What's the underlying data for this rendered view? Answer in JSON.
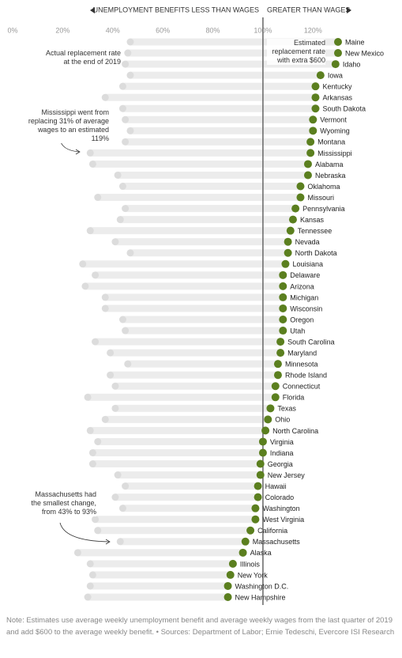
{
  "chart_data": {
    "type": "dumbbell",
    "header_left": "UNEMPLOYMENT BENEFITS LESS THAN WAGES",
    "header_right": "GREATER THAN WAGES",
    "categories": [
      "Maine",
      "New Mexico",
      "Idaho",
      "Iowa",
      "Kentucky",
      "Arkansas",
      "South Dakota",
      "Vermont",
      "Wyoming",
      "Montana",
      "Mississippi",
      "Alabama",
      "Nebraska",
      "Oklahoma",
      "Missouri",
      "Pennsylvania",
      "Kansas",
      "Tennessee",
      "Nevada",
      "North Dakota",
      "Louisiana",
      "Delaware",
      "Arizona",
      "Michigan",
      "Wisconsin",
      "Oregon",
      "Utah",
      "South Carolina",
      "Maryland",
      "Minnesota",
      "Rhode Island",
      "Connecticut",
      "Florida",
      "Texas",
      "Ohio",
      "North Carolina",
      "Virginia",
      "Indiana",
      "Georgia",
      "New Jersey",
      "Hawaii",
      "Colorado",
      "Washington",
      "West Virginia",
      "California",
      "Massachusetts",
      "Alaska",
      "Illinois",
      "New York",
      "Washington D.C.",
      "New Hampshire"
    ],
    "series": [
      {
        "name": "Actual replacement rate at the end of 2019",
        "color": "#dcdcdc",
        "values": [
          47,
          46,
          45,
          47,
          44,
          37,
          44,
          45,
          47,
          45,
          31,
          32,
          42,
          44,
          34,
          45,
          43,
          31,
          41,
          47,
          28,
          33,
          29,
          37,
          37,
          44,
          45,
          33,
          39,
          46,
          39,
          41,
          30,
          41,
          37,
          31,
          34,
          32,
          32,
          42,
          45,
          41,
          44,
          33,
          34,
          43,
          26,
          31,
          32,
          31,
          30
        ]
      },
      {
        "name": "Estimated replacement rate with extra $600",
        "color": "#5b7f1f",
        "values": [
          130,
          130,
          129,
          123,
          121,
          121,
          121,
          120,
          120,
          119,
          119,
          118,
          118,
          115,
          115,
          113,
          112,
          111,
          110,
          110,
          109,
          108,
          108,
          108,
          108,
          108,
          108,
          107,
          107,
          106,
          106,
          105,
          105,
          103,
          102,
          101,
          100,
          100,
          99,
          99,
          98,
          98,
          97,
          97,
          95,
          93,
          92,
          88,
          87,
          86,
          86
        ]
      }
    ],
    "xlim": [
      0,
      130
    ],
    "xticks": [
      {
        "value": 0,
        "label": "0%"
      },
      {
        "value": 20,
        "label": "20%"
      },
      {
        "value": 40,
        "label": "40%"
      },
      {
        "value": 60,
        "label": "60%"
      },
      {
        "value": 80,
        "label": "80%"
      },
      {
        "value": 100,
        "label": "100%"
      },
      {
        "value": 120,
        "label": "120%"
      }
    ],
    "reference_line": 100,
    "annotations": [
      {
        "text": "Mississippi went from replacing 31% of average wages to an estimated 119%"
      },
      {
        "text": "Massachusetts had the smallest change, from 43% to 93%"
      }
    ],
    "note": "Note: Estimates use average weekly unemployment benefit and average weekly wages from the last quarter of 2019 and add $600 to the average weekly benefit. • Sources: Department of Labor; Ernie Tedeschi, Evercore ISI Research"
  }
}
